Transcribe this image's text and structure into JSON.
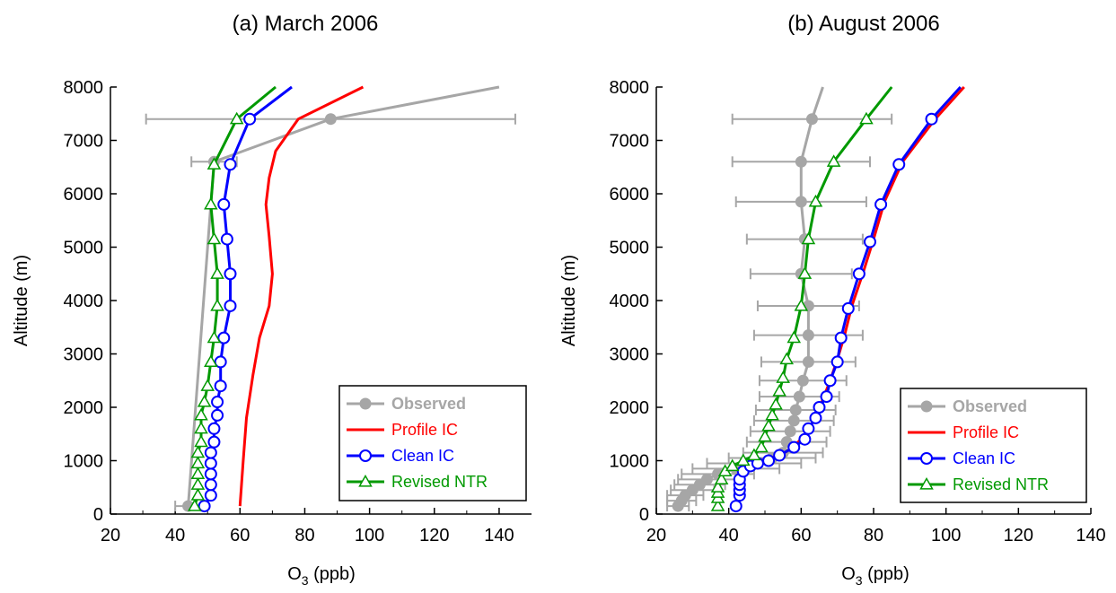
{
  "chart_data": [
    {
      "type": "line",
      "title": "(a) March 2006",
      "xlabel": "O3 (ppb)",
      "xlabel_main": "O",
      "xlabel_sub": "3",
      "xlabel_unit": " (ppb)",
      "ylabel": "Altitude (m)",
      "xlim": [
        20,
        150
      ],
      "ylim": [
        0,
        8000
      ],
      "xticks": [
        20,
        40,
        60,
        80,
        100,
        120,
        140
      ],
      "yticks": [
        0,
        1000,
        2000,
        3000,
        4000,
        5000,
        6000,
        7000,
        8000
      ],
      "legend_position": "bottom-right",
      "series": [
        {
          "name": "Observed",
          "color": "#a6a6a6",
          "marker": "filled-circle",
          "errorbars": true,
          "points": [
            {
              "x": 44,
              "y": 150,
              "err": 4
            },
            {
              "x": 52,
              "y": 6600,
              "err": 7
            },
            {
              "x": 88,
              "y": 7400,
              "err": 57
            },
            {
              "x": 140,
              "y": 8000
            }
          ]
        },
        {
          "name": "Profile IC",
          "color": "#ff0000",
          "marker": "none",
          "points": [
            {
              "x": 60,
              "y": 150
            },
            {
              "x": 61,
              "y": 1000
            },
            {
              "x": 62,
              "y": 1800
            },
            {
              "x": 64,
              "y": 2600
            },
            {
              "x": 66,
              "y": 3300
            },
            {
              "x": 69,
              "y": 3900
            },
            {
              "x": 70,
              "y": 4500
            },
            {
              "x": 69,
              "y": 5200
            },
            {
              "x": 68,
              "y": 5800
            },
            {
              "x": 69,
              "y": 6300
            },
            {
              "x": 71,
              "y": 6800
            },
            {
              "x": 78,
              "y": 7400
            },
            {
              "x": 98,
              "y": 8000
            }
          ]
        },
        {
          "name": "Clean IC",
          "color": "#0000ff",
          "marker": "open-circle",
          "points": [
            {
              "x": 49,
              "y": 150
            },
            {
              "x": 51,
              "y": 350
            },
            {
              "x": 51,
              "y": 550
            },
            {
              "x": 51,
              "y": 750
            },
            {
              "x": 51,
              "y": 950
            },
            {
              "x": 51,
              "y": 1150
            },
            {
              "x": 52,
              "y": 1350
            },
            {
              "x": 52,
              "y": 1600
            },
            {
              "x": 53,
              "y": 1850
            },
            {
              "x": 53,
              "y": 2100
            },
            {
              "x": 54,
              "y": 2400
            },
            {
              "x": 54,
              "y": 2850
            },
            {
              "x": 55,
              "y": 3300
            },
            {
              "x": 57,
              "y": 3900
            },
            {
              "x": 57,
              "y": 4500
            },
            {
              "x": 56,
              "y": 5150
            },
            {
              "x": 55,
              "y": 5800
            },
            {
              "x": 57,
              "y": 6550
            },
            {
              "x": 63,
              "y": 7400
            },
            {
              "x": 76,
              "y": 8000
            }
          ]
        },
        {
          "name": "Revised NTR",
          "color": "#009900",
          "marker": "open-triangle",
          "points": [
            {
              "x": 46,
              "y": 150
            },
            {
              "x": 47,
              "y": 350
            },
            {
              "x": 47,
              "y": 550
            },
            {
              "x": 47,
              "y": 750
            },
            {
              "x": 47,
              "y": 950
            },
            {
              "x": 47,
              "y": 1150
            },
            {
              "x": 48,
              "y": 1350
            },
            {
              "x": 48,
              "y": 1600
            },
            {
              "x": 48,
              "y": 1850
            },
            {
              "x": 49,
              "y": 2100
            },
            {
              "x": 50,
              "y": 2400
            },
            {
              "x": 51,
              "y": 2850
            },
            {
              "x": 52,
              "y": 3300
            },
            {
              "x": 53,
              "y": 3900
            },
            {
              "x": 53,
              "y": 4500
            },
            {
              "x": 52,
              "y": 5150
            },
            {
              "x": 51,
              "y": 5800
            },
            {
              "x": 52,
              "y": 6550
            },
            {
              "x": 59,
              "y": 7400
            },
            {
              "x": 71,
              "y": 8000
            }
          ]
        }
      ]
    },
    {
      "type": "line",
      "title": "(b) August 2006",
      "xlabel": "O3 (ppb)",
      "xlabel_main": "O",
      "xlabel_sub": "3",
      "xlabel_unit": " (ppb)",
      "ylabel": "Altitude (m)",
      "xlim": [
        20,
        140
      ],
      "ylim": [
        0,
        8000
      ],
      "xticks": [
        20,
        40,
        60,
        80,
        100,
        120,
        140
      ],
      "yticks": [
        0,
        1000,
        2000,
        3000,
        4000,
        5000,
        6000,
        7000,
        8000
      ],
      "legend_position": "bottom-right",
      "series": [
        {
          "name": "Observed",
          "color": "#a6a6a6",
          "marker": "filled-circle",
          "errorbars": true,
          "points": [
            {
              "x": 26,
              "y": 150,
              "err": 3
            },
            {
              "x": 27,
              "y": 250,
              "err": 4
            },
            {
              "x": 28,
              "y": 350,
              "err": 5
            },
            {
              "x": 30,
              "y": 450,
              "err": 6
            },
            {
              "x": 32,
              "y": 550,
              "err": 7
            },
            {
              "x": 34,
              "y": 650,
              "err": 8
            },
            {
              "x": 37,
              "y": 750,
              "err": 10
            },
            {
              "x": 42,
              "y": 850,
              "err": 12
            },
            {
              "x": 47,
              "y": 950,
              "err": 13
            },
            {
              "x": 52,
              "y": 1050,
              "err": 12
            },
            {
              "x": 55,
              "y": 1150,
              "err": 11
            },
            {
              "x": 56,
              "y": 1350,
              "err": 11
            },
            {
              "x": 57,
              "y": 1550,
              "err": 11
            },
            {
              "x": 58,
              "y": 1750,
              "err": 11
            },
            {
              "x": 58.5,
              "y": 1950,
              "err": 11
            },
            {
              "x": 59.5,
              "y": 2200,
              "err": 11
            },
            {
              "x": 60.5,
              "y": 2500,
              "err": 12
            },
            {
              "x": 62,
              "y": 2850,
              "err": 13
            },
            {
              "x": 62,
              "y": 3350,
              "err": 15
            },
            {
              "x": 62,
              "y": 3900,
              "err": 14
            },
            {
              "x": 60,
              "y": 4500,
              "err": 14
            },
            {
              "x": 61,
              "y": 5150,
              "err": 16
            },
            {
              "x": 60,
              "y": 5850,
              "err": 18
            },
            {
              "x": 60,
              "y": 6600,
              "err": 19
            },
            {
              "x": 63,
              "y": 7400,
              "err": 22
            },
            {
              "x": 66,
              "y": 8000
            }
          ]
        },
        {
          "name": "Profile IC",
          "color": "#ff0000",
          "marker": "none",
          "points": [
            {
              "x": 42,
              "y": 150
            },
            {
              "x": 43,
              "y": 350
            },
            {
              "x": 43,
              "y": 550
            },
            {
              "x": 45,
              "y": 800
            },
            {
              "x": 49,
              "y": 1000
            },
            {
              "x": 54,
              "y": 1100
            },
            {
              "x": 58,
              "y": 1250
            },
            {
              "x": 61,
              "y": 1500
            },
            {
              "x": 64,
              "y": 1800
            },
            {
              "x": 66,
              "y": 2150
            },
            {
              "x": 68,
              "y": 2500
            },
            {
              "x": 70,
              "y": 2900
            },
            {
              "x": 72,
              "y": 3350
            },
            {
              "x": 74,
              "y": 3900
            },
            {
              "x": 77,
              "y": 4500
            },
            {
              "x": 80,
              "y": 5150
            },
            {
              "x": 83,
              "y": 5850
            },
            {
              "x": 88,
              "y": 6600
            },
            {
              "x": 97,
              "y": 7400
            },
            {
              "x": 105,
              "y": 8000
            }
          ]
        },
        {
          "name": "Clean IC",
          "color": "#0000ff",
          "marker": "open-circle",
          "points": [
            {
              "x": 42,
              "y": 150
            },
            {
              "x": 43,
              "y": 350
            },
            {
              "x": 43,
              "y": 450
            },
            {
              "x": 43,
              "y": 550
            },
            {
              "x": 43,
              "y": 650
            },
            {
              "x": 44,
              "y": 800
            },
            {
              "x": 46,
              "y": 900
            },
            {
              "x": 48,
              "y": 950
            },
            {
              "x": 51,
              "y": 1000
            },
            {
              "x": 54,
              "y": 1100
            },
            {
              "x": 58,
              "y": 1250
            },
            {
              "x": 61,
              "y": 1400
            },
            {
              "x": 62,
              "y": 1600
            },
            {
              "x": 64,
              "y": 1800
            },
            {
              "x": 65,
              "y": 2000
            },
            {
              "x": 67,
              "y": 2200
            },
            {
              "x": 68,
              "y": 2500
            },
            {
              "x": 70,
              "y": 2850
            },
            {
              "x": 71,
              "y": 3300
            },
            {
              "x": 73,
              "y": 3850
            },
            {
              "x": 76,
              "y": 4500
            },
            {
              "x": 79,
              "y": 5100
            },
            {
              "x": 82,
              "y": 5800
            },
            {
              "x": 87,
              "y": 6550
            },
            {
              "x": 96,
              "y": 7400
            },
            {
              "x": 104,
              "y": 8000
            }
          ]
        },
        {
          "name": "Revised NTR",
          "color": "#009900",
          "marker": "open-triangle",
          "points": [
            {
              "x": 37,
              "y": 150
            },
            {
              "x": 37,
              "y": 300
            },
            {
              "x": 37,
              "y": 400
            },
            {
              "x": 37,
              "y": 500
            },
            {
              "x": 38,
              "y": 650
            },
            {
              "x": 39,
              "y": 800
            },
            {
              "x": 41,
              "y": 900
            },
            {
              "x": 44,
              "y": 1000
            },
            {
              "x": 47,
              "y": 1100
            },
            {
              "x": 49,
              "y": 1250
            },
            {
              "x": 50,
              "y": 1450
            },
            {
              "x": 51,
              "y": 1650
            },
            {
              "x": 52,
              "y": 1850
            },
            {
              "x": 53,
              "y": 2050
            },
            {
              "x": 54,
              "y": 2300
            },
            {
              "x": 55,
              "y": 2550
            },
            {
              "x": 56,
              "y": 2900
            },
            {
              "x": 58,
              "y": 3300
            },
            {
              "x": 60,
              "y": 3900
            },
            {
              "x": 61,
              "y": 4500
            },
            {
              "x": 62,
              "y": 5150
            },
            {
              "x": 64,
              "y": 5850
            },
            {
              "x": 69,
              "y": 6600
            },
            {
              "x": 78,
              "y": 7400
            },
            {
              "x": 85,
              "y": 8000
            }
          ]
        }
      ]
    }
  ]
}
